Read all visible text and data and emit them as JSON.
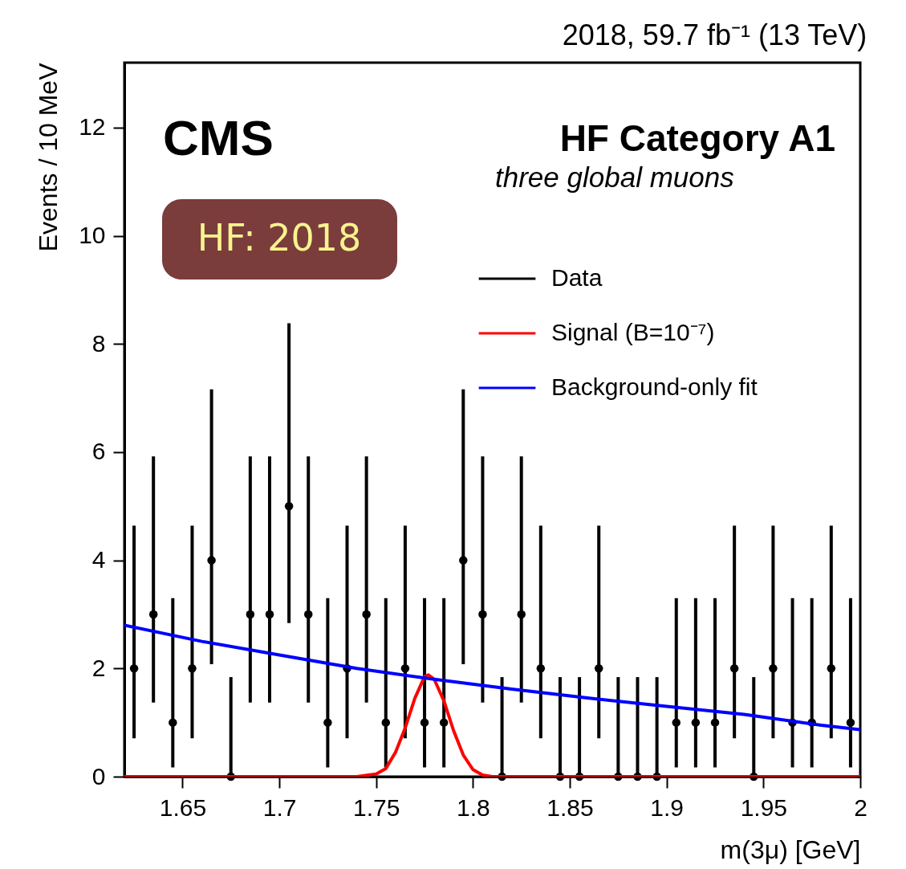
{
  "chart_data": {
    "type": "scatter",
    "title": "2018, 59.7 fb⁻¹ (13 TeV)",
    "xlabel": "m(3μ) [GeV]",
    "ylabel": "Events / 10 MeV",
    "annotations": [
      "CMS",
      "HF Category A1",
      "three global muons",
      "HF: 2018"
    ],
    "xlim": [
      1.62,
      2.0
    ],
    "xticks": [
      1.65,
      1.7,
      1.75,
      1.8,
      1.85,
      1.9,
      1.95,
      2
    ],
    "ylim": [
      0,
      13.2
    ],
    "yticks": [
      0,
      2,
      4,
      6,
      8,
      10,
      12
    ],
    "grid": false,
    "legend": "top right",
    "line_style": "solid",
    "series": [
      {
        "name": "Data",
        "marker": "circle",
        "color": "#000000",
        "x": [
          1.625,
          1.635,
          1.645,
          1.655,
          1.665,
          1.675,
          1.685,
          1.695,
          1.705,
          1.715,
          1.725,
          1.735,
          1.745,
          1.755,
          1.765,
          1.775,
          1.785,
          1.795,
          1.805,
          1.815,
          1.825,
          1.835,
          1.845,
          1.855,
          1.865,
          1.875,
          1.885,
          1.895,
          1.905,
          1.915,
          1.925,
          1.935,
          1.945,
          1.955,
          1.965,
          1.975,
          1.985,
          1.995
        ],
        "values": [
          2,
          3,
          1,
          2,
          4,
          0,
          3,
          3,
          5,
          3,
          1,
          2,
          3,
          1,
          2,
          1,
          1,
          4,
          3,
          0,
          3,
          2,
          0,
          0,
          2,
          0,
          0,
          0,
          1,
          1,
          1,
          2,
          0,
          2,
          1,
          1,
          2,
          1
        ],
        "errors": [
          [
            0.71,
            4.64
          ],
          [
            1.37,
            5.92
          ],
          [
            0.17,
            3.3
          ],
          [
            0.71,
            4.64
          ],
          [
            2.08,
            7.16
          ],
          [
            0,
            1.84
          ],
          [
            1.37,
            5.92
          ],
          [
            1.37,
            5.92
          ],
          [
            2.84,
            8.38
          ],
          [
            1.37,
            5.92
          ],
          [
            0.17,
            3.3
          ],
          [
            0.71,
            4.64
          ],
          [
            1.37,
            5.92
          ],
          [
            0.17,
            3.3
          ],
          [
            0.71,
            4.64
          ],
          [
            0.17,
            3.3
          ],
          [
            0.17,
            3.3
          ],
          [
            2.08,
            7.16
          ],
          [
            1.37,
            5.92
          ],
          [
            0,
            1.84
          ],
          [
            1.37,
            5.92
          ],
          [
            0.71,
            4.64
          ],
          [
            0,
            1.84
          ],
          [
            0,
            1.84
          ],
          [
            0.71,
            4.64
          ],
          [
            0,
            1.84
          ],
          [
            0,
            1.84
          ],
          [
            0,
            1.84
          ],
          [
            0.17,
            3.3
          ],
          [
            0.17,
            3.3
          ],
          [
            0.17,
            3.3
          ],
          [
            0.71,
            4.64
          ],
          [
            0,
            1.84
          ],
          [
            0.71,
            4.64
          ],
          [
            0.17,
            3.3
          ],
          [
            0.17,
            3.3
          ],
          [
            0.71,
            4.64
          ],
          [
            0.17,
            3.3
          ]
        ]
      },
      {
        "name": "Signal (B=10⁻⁷)",
        "type": "line",
        "color": "#ff0000",
        "x": [
          1.62,
          1.74,
          1.75,
          1.755,
          1.76,
          1.765,
          1.77,
          1.775,
          1.777,
          1.78,
          1.785,
          1.79,
          1.795,
          1.8,
          1.805,
          1.81,
          2.0
        ],
        "values": [
          0,
          0,
          0.05,
          0.15,
          0.45,
          0.9,
          1.45,
          1.85,
          1.88,
          1.8,
          1.4,
          0.85,
          0.4,
          0.13,
          0.03,
          0,
          0
        ]
      },
      {
        "name": "Background-only fit",
        "type": "line",
        "color": "#0000ff",
        "x": [
          1.62,
          1.66,
          1.7,
          1.74,
          1.78,
          1.82,
          1.86,
          1.9,
          1.94,
          1.98,
          2.0
        ],
        "values": [
          2.8,
          2.5,
          2.25,
          2.0,
          1.8,
          1.62,
          1.45,
          1.3,
          1.15,
          0.95,
          0.87
        ]
      }
    ]
  }
}
